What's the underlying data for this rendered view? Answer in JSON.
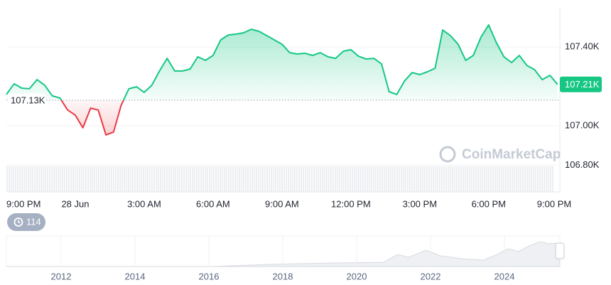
{
  "chart_data": {
    "type": "line",
    "color": "#16c784",
    "down_color": "#ea3943",
    "x": [
      0,
      20,
      40,
      60,
      80,
      100,
      120,
      140,
      160,
      180,
      200,
      220,
      240,
      260,
      280,
      300,
      320,
      340,
      360,
      380,
      400,
      420,
      440,
      460,
      480,
      500,
      520,
      540,
      560,
      580,
      600,
      620,
      640,
      660,
      680,
      700,
      720,
      740,
      760,
      780,
      800,
      820,
      840,
      860,
      880,
      900,
      920,
      940,
      960,
      980,
      1000,
      1020,
      1040,
      1060,
      1080,
      1100,
      1120,
      1140,
      1160,
      1180,
      1200,
      1220,
      1240,
      1260,
      1280,
      1300,
      1320,
      1340,
      1360,
      1380,
      1400,
      1420,
      1440
    ],
    "values": [
      107159,
      107213,
      107191,
      107188,
      107234,
      107206,
      107152,
      107141,
      107080,
      107054,
      106990,
      107090,
      107080,
      106954,
      106968,
      107105,
      107188,
      107198,
      107170,
      107206,
      107278,
      107342,
      107278,
      107278,
      107288,
      107350,
      107332,
      107357,
      107436,
      107461,
      107465,
      107472,
      107490,
      107479,
      107458,
      107436,
      107414,
      107371,
      107364,
      107368,
      107357,
      107371,
      107350,
      107342,
      107378,
      107386,
      107353,
      107339,
      107342,
      107314,
      107173,
      107159,
      107227,
      107270,
      107260,
      107274,
      107292,
      107486,
      107458,
      107414,
      107332,
      107357,
      107450,
      107512,
      107422,
      107350,
      107321,
      107357,
      107306,
      107285,
      107234,
      107256,
      107210
    ],
    "xlim": [
      0,
      1446
    ],
    "ylim": [
      106665,
      107602
    ],
    "xticks": [
      {
        "value": 0,
        "label": "9:00 PM"
      },
      {
        "value": 180,
        "label": "28 Jun"
      },
      {
        "value": 360,
        "label": "3:00 AM"
      },
      {
        "value": 540,
        "label": "6:00 AM"
      },
      {
        "value": 720,
        "label": "9:00 AM"
      },
      {
        "value": 900,
        "label": "12:00 PM"
      },
      {
        "value": 1080,
        "label": "3:00 PM"
      },
      {
        "value": 1260,
        "label": "6:00 PM"
      },
      {
        "value": 1440,
        "label": "9:00 PM"
      }
    ],
    "yticks": [
      {
        "value": 107400,
        "label": "107.40K"
      },
      {
        "value": 107000,
        "label": "107.00K"
      },
      {
        "value": 106800,
        "label": "106.80K"
      }
    ],
    "baseline": {
      "value": 107130,
      "label": "107.13K"
    },
    "current_price": {
      "value": 107210,
      "label": "107.21K"
    },
    "grid": true,
    "watermark": "CoinMarketCap"
  },
  "history_badge": "114",
  "navigator": {
    "years": [
      "2012",
      "2014",
      "2016",
      "2018",
      "2020",
      "2022",
      "2024"
    ]
  }
}
